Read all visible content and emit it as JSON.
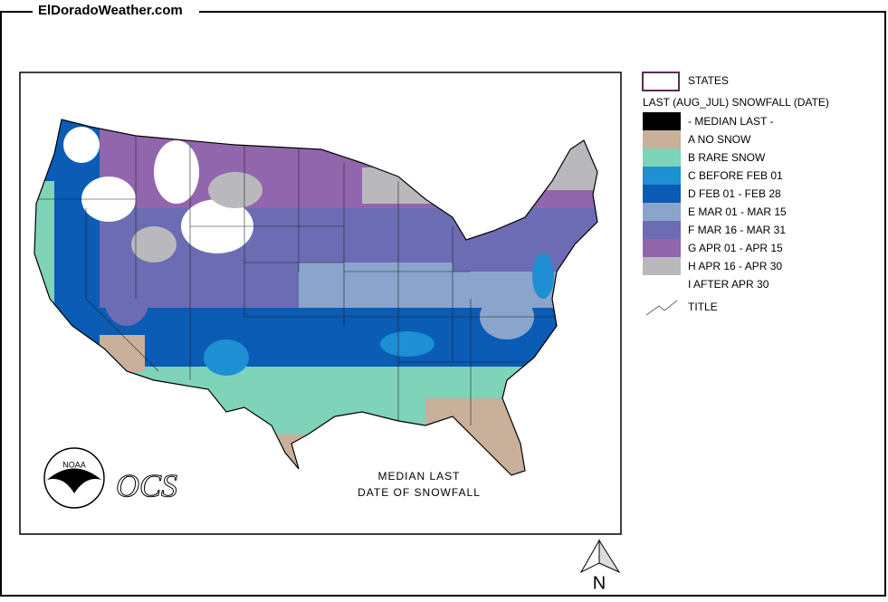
{
  "header": {
    "site": "ElDoradoWeather.com"
  },
  "map": {
    "caption": [
      "MEDIAN LAST",
      "DATE OF SNOWFALL"
    ],
    "logos": {
      "noaa": "NOAA",
      "ocs": "OCS"
    }
  },
  "legend": {
    "states": "STATES",
    "title": "LAST (AUG_JUL) SNOWFALL (DATE)",
    "items": [
      {
        "label": "- MEDIAN LAST -",
        "color": "#000000"
      },
      {
        "label": "A NO SNOW",
        "color": "#c8b09a"
      },
      {
        "label": "B RARE SNOW",
        "color": "#7fd3b9"
      },
      {
        "label": "C BEFORE FEB 01",
        "color": "#1e8fd2"
      },
      {
        "label": "D FEB 01 - FEB 28",
        "color": "#0a5cb4"
      },
      {
        "label": "E MAR 01 - MAR 15",
        "color": "#8ba4cc"
      },
      {
        "label": "F MAR 16 - MAR 31",
        "color": "#6b6cb4"
      },
      {
        "label": "G APR 01 - APR 15",
        "color": "#9266ac"
      },
      {
        "label": "H APR 16 - APR 30",
        "color": "#b9b9bd"
      },
      {
        "label": "I AFTER APR 30",
        "color": "#ffffff"
      }
    ],
    "line": "TITLE"
  },
  "compass": "N"
}
